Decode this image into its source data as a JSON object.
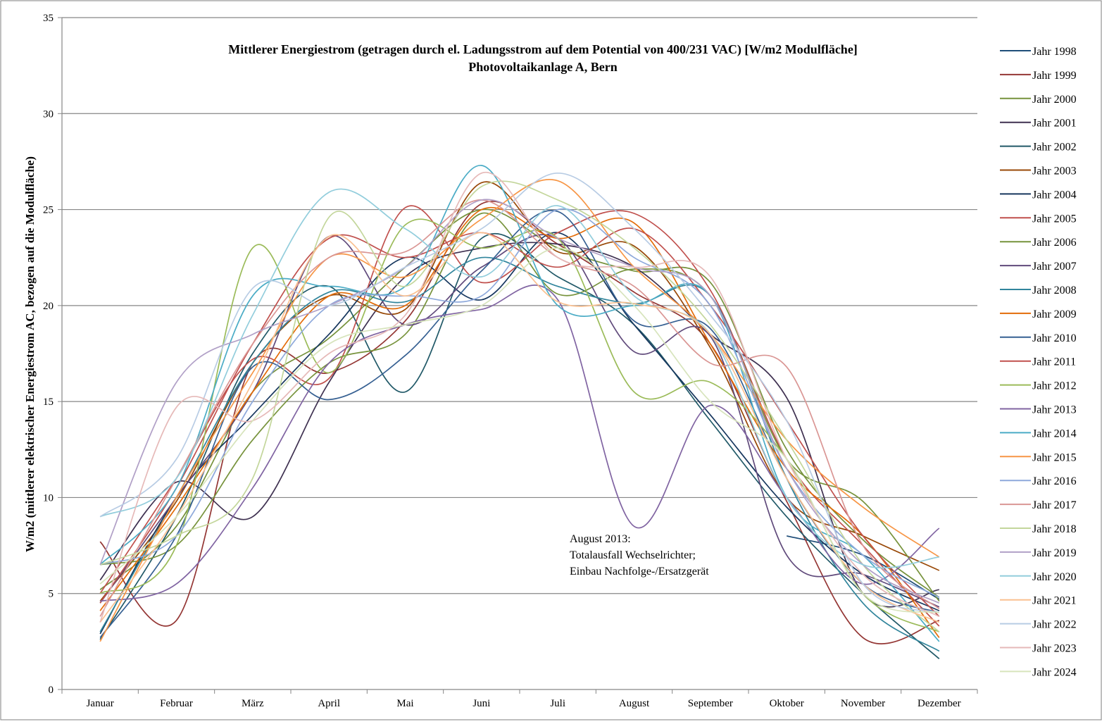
{
  "chart_data": {
    "type": "line",
    "title": "Mittlerer Energiestrom (getragen durch el. Ladungsstrom auf dem Potential von 400/231 VAC) [W/m2 Modulfläche]",
    "subtitle": "Photovoltaikanlage A, Bern",
    "ylabel": "W/m2 (mittlerer elektrischer Energiestrom AC, bezogen auf die Modulfläche)",
    "xlabel": "",
    "ylim": [
      0,
      35
    ],
    "yticks": [
      "0",
      "5",
      "10",
      "15",
      "20",
      "25",
      "30",
      "35"
    ],
    "categories": [
      "Januar",
      "Februar",
      "März",
      "April",
      "Mai",
      "Juni",
      "Juli",
      "August",
      "September",
      "Oktober",
      "November",
      "Dezember"
    ],
    "grid": "horizontal",
    "legend_position": "right",
    "series": [
      {
        "name": "Jahr 1998",
        "color": "#1f4e79",
        "values": [
          null,
          null,
          null,
          null,
          null,
          null,
          null,
          null,
          null,
          8.0,
          7.0,
          4.7
        ]
      },
      {
        "name": "Jahr 1999",
        "color": "#943634",
        "values": [
          7.7,
          3.6,
          17.0,
          16.5,
          19.2,
          25.3,
          23.2,
          20.7,
          18.0,
          9.8,
          2.7,
          3.6
        ]
      },
      {
        "name": "Jahr 2000",
        "color": "#76923c",
        "values": [
          5.2,
          8.5,
          15.5,
          18.3,
          22.0,
          25.0,
          23.0,
          21.8,
          21.2,
          12.5,
          7.8,
          4.8
        ]
      },
      {
        "name": "Jahr 2001",
        "color": "#3f3151",
        "values": [
          5.7,
          10.8,
          9.0,
          16.0,
          21.5,
          23.0,
          23.2,
          22.0,
          18.5,
          15.2,
          5.0,
          5.2
        ]
      },
      {
        "name": "Jahr 2002",
        "color": "#215968",
        "values": [
          2.6,
          9.0,
          17.5,
          21.0,
          15.5,
          23.5,
          21.5,
          19.0,
          14.0,
          9.0,
          5.0,
          1.6
        ]
      },
      {
        "name": "Jahr 2003",
        "color": "#984807",
        "values": [
          4.6,
          9.8,
          17.0,
          20.5,
          19.8,
          26.4,
          22.8,
          23.1,
          17.8,
          10.0,
          8.0,
          6.2
        ]
      },
      {
        "name": "Jahr 2004",
        "color": "#17375e",
        "values": [
          2.9,
          10.0,
          14.3,
          18.5,
          22.5,
          20.3,
          23.8,
          19.0,
          14.3,
          9.5,
          6.0,
          4.1
        ]
      },
      {
        "name": "Jahr 2005",
        "color": "#c0504d",
        "values": [
          5.0,
          11.0,
          17.2,
          16.2,
          25.1,
          21.2,
          23.8,
          24.8,
          20.8,
          12.0,
          7.5,
          3.3
        ]
      },
      {
        "name": "Jahr 2006",
        "color": "#77933c",
        "values": [
          6.5,
          7.5,
          13.0,
          17.0,
          18.5,
          24.8,
          20.6,
          21.9,
          20.5,
          12.0,
          9.8,
          4.6
        ]
      },
      {
        "name": "Jahr 2007",
        "color": "#604a7b",
        "values": [
          4.5,
          10.0,
          15.5,
          23.6,
          19.0,
          22.0,
          23.5,
          17.6,
          18.4,
          7.0,
          6.0,
          4.3
        ]
      },
      {
        "name": "Jahr 2008",
        "color": "#31859c",
        "values": [
          3.0,
          10.0,
          17.0,
          20.7,
          20.2,
          22.5,
          21.0,
          20.1,
          20.5,
          11.0,
          4.5,
          2.0
        ]
      },
      {
        "name": "Jahr 2009",
        "color": "#e36c09",
        "values": [
          4.1,
          9.5,
          15.5,
          20.5,
          20.0,
          25.0,
          23.5,
          24.3,
          18.0,
          11.5,
          8.0,
          2.7
        ]
      },
      {
        "name": "Jahr 2010",
        "color": "#366092",
        "values": [
          2.7,
          8.0,
          16.8,
          15.1,
          17.4,
          21.8,
          24.9,
          19.2,
          18.8,
          11.0,
          5.5,
          4.0
        ]
      },
      {
        "name": "Jahr 2011",
        "color": "#c0504d",
        "values": [
          4.5,
          10.5,
          18.0,
          23.5,
          22.5,
          23.8,
          22.0,
          24.0,
          20.0,
          14.0,
          8.0,
          3.8
        ]
      },
      {
        "name": "Jahr 2012",
        "color": "#9bbb59",
        "values": [
          5.0,
          7.5,
          23.0,
          16.5,
          24.2,
          23.0,
          23.5,
          15.5,
          16.0,
          12.0,
          5.0,
          3.0
        ]
      },
      {
        "name": "Jahr 2013",
        "color": "#8064a2",
        "values": [
          4.6,
          5.5,
          10.5,
          17.0,
          19.0,
          19.8,
          20.3,
          8.5,
          14.8,
          10.0,
          5.5,
          8.4
        ]
      },
      {
        "name": "Jahr 2014",
        "color": "#4bacc6",
        "values": [
          6.5,
          10.5,
          20.5,
          21.0,
          21.0,
          27.3,
          20.0,
          20.0,
          20.5,
          10.0,
          7.0,
          2.5
        ]
      },
      {
        "name": "Jahr 2015",
        "color": "#f79646",
        "values": [
          2.5,
          10.0,
          16.5,
          22.5,
          21.5,
          24.5,
          26.5,
          22.0,
          18.5,
          13.0,
          9.5,
          6.9
        ]
      },
      {
        "name": "Jahr 2016",
        "color": "#8ea9db",
        "values": [
          6.5,
          8.0,
          15.0,
          20.0,
          20.5,
          20.5,
          25.0,
          22.5,
          20.0,
          11.5,
          7.0,
          4.8
        ]
      },
      {
        "name": "Jahr 2017",
        "color": "#da9694",
        "values": [
          3.8,
          11.0,
          18.0,
          22.5,
          22.8,
          25.5,
          22.5,
          21.0,
          17.0,
          16.8,
          7.5,
          4.2
        ]
      },
      {
        "name": "Jahr 2018",
        "color": "#c3d69b",
        "values": [
          6.5,
          8.0,
          11.0,
          24.6,
          21.0,
          26.2,
          25.5,
          23.0,
          19.0,
          13.0,
          6.5,
          3.0
        ]
      },
      {
        "name": "Jahr 2019",
        "color": "#b1a0c7",
        "values": [
          6.5,
          16.0,
          18.5,
          20.0,
          22.0,
          25.5,
          23.5,
          22.0,
          20.5,
          11.5,
          6.5,
          4.5
        ]
      },
      {
        "name": "Jahr 2020",
        "color": "#92cddc",
        "values": [
          9.0,
          11.0,
          19.5,
          25.9,
          24.0,
          21.5,
          25.2,
          20.5,
          18.5,
          10.0,
          6.5,
          6.9
        ]
      },
      {
        "name": "Jahr 2021",
        "color": "#fac090",
        "values": [
          3.5,
          9.0,
          16.0,
          23.6,
          20.5,
          23.8,
          20.2,
          20.1,
          18.5,
          11.0,
          5.5,
          3.5
        ]
      },
      {
        "name": "Jahr 2022",
        "color": "#b8cce4",
        "values": [
          9.0,
          12.0,
          20.9,
          20.0,
          22.0,
          24.0,
          26.9,
          24.0,
          19.5,
          14.0,
          5.5,
          4.0
        ]
      },
      {
        "name": "Jahr 2023",
        "color": "#e6b9b8",
        "values": [
          3.5,
          14.7,
          14.0,
          17.5,
          19.5,
          26.9,
          22.5,
          22.0,
          21.5,
          12.0,
          6.0,
          3.8
        ]
      },
      {
        "name": "Jahr 2024",
        "color": "#d7e4bc",
        "values": [
          5.5,
          9.0,
          14.0,
          18.0,
          19.0,
          20.0,
          23.0,
          20.0,
          15.0,
          12.0,
          5.0,
          4.0
        ]
      }
    ],
    "annotations": [
      {
        "lines": [
          "August 2013:",
          "Totalausfall Wechselrichter;",
          "Einbau Nachfolge-/Ersatzgerät"
        ],
        "anchor": "August"
      }
    ]
  }
}
